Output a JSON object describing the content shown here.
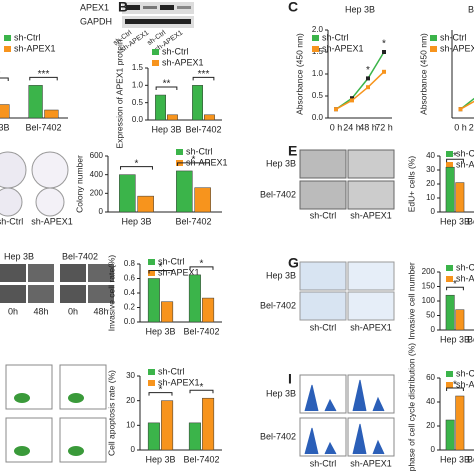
{
  "panel_letters": [
    "B",
    "C",
    "E",
    "G",
    "I"
  ],
  "image_labels": {
    "blot": {
      "rows": [
        "APEX1",
        "GAPDH"
      ],
      "lanes": [
        "sh-Ctrl",
        "sh-APEX1",
        "sh-Ctrl",
        "sh-APEX1"
      ]
    },
    "colony": {
      "cols": [
        "sh-Ctrl",
        "sh-APEX1"
      ]
    },
    "edu": {
      "rows": [
        "Hep 3B",
        "Bel-7402"
      ],
      "cols": [
        "sh-Ctrl",
        "sh-APEX1"
      ]
    },
    "wound": {
      "lines": [
        "Hep 3B",
        "Bel-7402"
      ],
      "times": [
        "0h",
        "48h",
        "0h",
        "48h"
      ]
    },
    "transwell": {
      "rows": [
        "Hep 3B",
        "Bel-7402"
      ],
      "cols": [
        "sh-Ctrl",
        "sh-APEX1"
      ]
    },
    "cellcycle": {
      "rows": [
        "Hep 3B",
        "Bel-7402"
      ],
      "cols": [
        "sh-Ctrl",
        "sh-APEX1"
      ]
    }
  },
  "chart_data": [
    {
      "type": "bar",
      "categories": [
        "Hep 3B",
        "Bel-7402"
      ],
      "ylim": [
        0,
        1.5
      ],
      "series": [
        {
          "name": "sh-Ctrl",
          "color": "#3bb44a",
          "values": [
            1.0,
            1.02
          ]
        },
        {
          "name": "sh-APEX1",
          "color": "#f7941d",
          "values": [
            0.42,
            0.25
          ]
        }
      ],
      "annotations": [
        "***",
        "***"
      ]
    },
    {
      "type": "bar",
      "ylabel": "Expression of APEX1 protein",
      "categories": [
        "Hep 3B",
        "Bel-7402"
      ],
      "ylim": [
        0,
        1.5
      ],
      "yticks": [
        {
          "value": 0,
          "label": "0.0"
        },
        {
          "value": 0.5,
          "label": "0.5"
        },
        {
          "value": 1,
          "label": "1.0"
        },
        {
          "value": 1.5,
          "label": "1.5"
        }
      ],
      "series": [
        {
          "name": "sh-Ctrl",
          "color": "#3bb44a",
          "values": [
            0.72,
            1.0
          ]
        },
        {
          "name": "sh-APEX1",
          "color": "#f7941d",
          "values": [
            0.15,
            0.15
          ]
        }
      ],
      "annotations": [
        "**",
        "***"
      ]
    },
    {
      "type": "line",
      "title": "Hep 3B",
      "ylabel": "Absorbance (450 nm)",
      "categories": [
        "0 h",
        "24 h",
        "48 h",
        "72 h"
      ],
      "ylim": [
        0,
        2
      ],
      "yticks": [
        {
          "value": 0,
          "label": "0.0"
        },
        {
          "value": 0.5,
          "label": "0.5"
        },
        {
          "value": 1,
          "label": "1.0"
        },
        {
          "value": 1.5,
          "label": "1.5"
        },
        {
          "value": 2,
          "label": "2.0"
        }
      ],
      "series": [
        {
          "name": "sh-Ctrl",
          "color": "#3bb44a",
          "values": [
            0.2,
            0.45,
            0.9,
            1.5
          ]
        },
        {
          "name": "sh-APEX1",
          "color": "#f7941d",
          "values": [
            0.2,
            0.4,
            0.7,
            1.05
          ]
        }
      ],
      "annotations": [
        null,
        null,
        "*",
        "*"
      ]
    },
    {
      "type": "line",
      "title": "Bel-7402",
      "ylabel": "Absorbance (450 nm)",
      "categories": [
        "0 h",
        "24 h",
        "48 h",
        "72 h"
      ],
      "ylim": [
        0,
        2
      ],
      "series": [
        {
          "name": "sh-Ctrl",
          "color": "#3bb44a",
          "values": [
            0.2,
            0.5,
            1.0,
            1.6
          ]
        },
        {
          "name": "sh-APEX1",
          "color": "#f7941d",
          "values": [
            0.2,
            0.42,
            0.75,
            1.1
          ]
        }
      ]
    },
    {
      "type": "bar",
      "ylabel": "Colony number",
      "categories": [
        "Hep 3B",
        "Bel-7402"
      ],
      "ylim": [
        0,
        600
      ],
      "yticks": [
        0,
        200,
        400,
        600
      ],
      "series": [
        {
          "name": "sh-Ctrl",
          "color": "#3bb44a",
          "values": [
            400,
            440
          ]
        },
        {
          "name": "sh-APEX1",
          "color": "#f7941d",
          "values": [
            170,
            260
          ]
        }
      ],
      "annotations": [
        "*",
        "*"
      ]
    },
    {
      "type": "bar",
      "ylabel": "EdU+ cells (%)",
      "categories": [
        "Hep 3B",
        "Bel-7402"
      ],
      "ylim": [
        0,
        40
      ],
      "yticks": [
        0,
        10,
        20,
        30,
        40
      ],
      "series": [
        {
          "name": "sh-Ctrl",
          "color": "#3bb44a",
          "values": [
            32,
            34
          ]
        },
        {
          "name": "sh-APEX1",
          "color": "#f7941d",
          "values": [
            21,
            22
          ]
        }
      ],
      "annotations": [
        "*",
        "*"
      ]
    },
    {
      "type": "bar",
      "ylabel": "Invasive cell rate(%)",
      "categories": [
        "Hep 3B",
        "Bel-7402"
      ],
      "ylim": [
        0,
        0.8
      ],
      "yticks": [
        {
          "value": 0,
          "label": "0.0"
        },
        {
          "value": 0.2,
          "label": "0.2"
        },
        {
          "value": 0.4,
          "label": "0.4"
        },
        {
          "value": 0.6,
          "label": "0.6"
        },
        {
          "value": 0.8,
          "label": "0.8"
        }
      ],
      "series": [
        {
          "name": "sh-Ctrl",
          "color": "#3bb44a",
          "values": [
            0.6,
            0.65
          ]
        },
        {
          "name": "sh-APEX1",
          "color": "#f7941d",
          "values": [
            0.28,
            0.33
          ]
        }
      ],
      "annotations": [
        "*",
        "*"
      ]
    },
    {
      "type": "bar",
      "ylabel": "Invasive cell number",
      "categories": [
        "Hep 3B",
        "Bel-7402"
      ],
      "ylim": [
        0,
        200
      ],
      "yticks": [
        0,
        50,
        100,
        150,
        200
      ],
      "series": [
        {
          "name": "sh-Ctrl",
          "color": "#3bb44a",
          "values": [
            120,
            125
          ]
        },
        {
          "name": "sh-APEX1",
          "color": "#f7941d",
          "values": [
            70,
            72
          ]
        }
      ],
      "annotations": [
        "*",
        "*"
      ]
    },
    {
      "type": "bar",
      "ylabel": "Cell apoptosis rate (%)",
      "categories": [
        "Hep 3B",
        "Bel-7402"
      ],
      "ylim": [
        0,
        30
      ],
      "yticks": [
        0,
        10,
        20,
        30
      ],
      "series": [
        {
          "name": "sh-Ctrl",
          "color": "#3bb44a",
          "values": [
            11,
            11
          ]
        },
        {
          "name": "sh-APEX1",
          "color": "#f7941d",
          "values": [
            20,
            21
          ]
        }
      ],
      "annotations": [
        "*",
        "*"
      ]
    },
    {
      "type": "bar",
      "ylabel": "G1 phase of cell cycle distribution (%)",
      "categories": [
        "Hep 3B",
        "Bel-7402"
      ],
      "ylim": [
        0,
        60
      ],
      "yticks": [
        0,
        20,
        40,
        60
      ],
      "series": [
        {
          "name": "sh-Ctrl",
          "color": "#3bb44a",
          "values": [
            25,
            27
          ]
        },
        {
          "name": "sh-APEX1",
          "color": "#f7941d",
          "values": [
            45,
            46
          ]
        }
      ],
      "annotations": [
        "*",
        "*"
      ]
    }
  ]
}
